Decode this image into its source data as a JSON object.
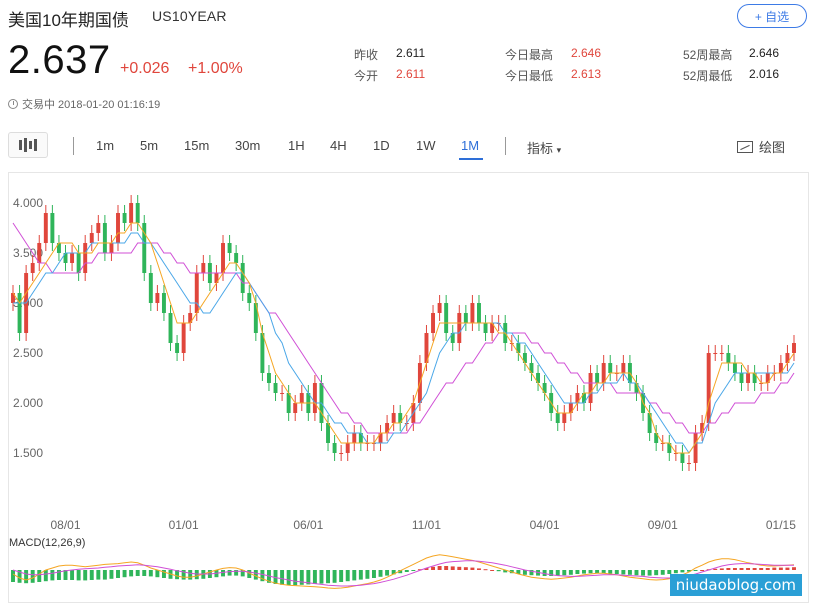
{
  "header": {
    "title": "美国10年期国债",
    "symbol": "US10YEAR",
    "watch_label": "+ 自选"
  },
  "quote": {
    "price": "2.637",
    "change": "+0.026",
    "change_pct": "+1.00%"
  },
  "stats": {
    "prev_close_label": "昨收",
    "prev_close": "2.611",
    "open_label": "今开",
    "open": "2.611",
    "day_high_label": "今日最高",
    "day_high": "2.646",
    "day_low_label": "今日最低",
    "day_low": "2.613",
    "wk52_high_label": "52周最高",
    "wk52_high": "2.646",
    "wk52_low_label": "52周最低",
    "wk52_low": "2.016"
  },
  "status": {
    "text": "交易中 2018-01-20 01:16:19"
  },
  "toolbar": {
    "timeframes": [
      "1m",
      "5m",
      "15m",
      "30m",
      "1H",
      "4H",
      "1D",
      "1W",
      "1M"
    ],
    "active_timeframe": "1M",
    "indicator_label": "指标",
    "draw_label": "绘图"
  },
  "colors": {
    "up": "#e0463c",
    "down": "#2fb55a",
    "ma5": "#f5a623",
    "ma10": "#4aa7e8",
    "ma20": "#d04fd6",
    "accent": "#2e6fd8"
  },
  "chart_data": {
    "type": "candlestick",
    "y_ticks": [
      "4.000",
      "3.500",
      "3.000",
      "2.500",
      "2.000",
      "1.500"
    ],
    "x_ticks": [
      "08/01",
      "01/01",
      "06/01",
      "11/01",
      "04/01",
      "09/01",
      "01/15"
    ],
    "ylim": [
      1.0,
      4.2
    ],
    "closes": [
      3.1,
      2.7,
      3.3,
      3.4,
      3.6,
      3.9,
      3.6,
      3.5,
      3.4,
      3.5,
      3.3,
      3.6,
      3.7,
      3.8,
      3.5,
      3.6,
      3.9,
      3.8,
      4.0,
      3.8,
      3.3,
      3.0,
      3.1,
      2.9,
      2.6,
      2.5,
      2.8,
      2.9,
      3.3,
      3.4,
      3.2,
      3.3,
      3.6,
      3.5,
      3.4,
      3.1,
      3.0,
      2.7,
      2.3,
      2.2,
      2.1,
      2.1,
      1.9,
      2.0,
      2.1,
      1.9,
      2.2,
      1.8,
      1.6,
      1.5,
      1.5,
      1.6,
      1.7,
      1.6,
      1.6,
      1.6,
      1.7,
      1.8,
      1.9,
      1.8,
      1.8,
      2.0,
      2.4,
      2.7,
      2.9,
      3.0,
      2.7,
      2.6,
      2.9,
      2.8,
      3.0,
      2.8,
      2.7,
      2.8,
      2.8,
      2.6,
      2.6,
      2.5,
      2.4,
      2.3,
      2.2,
      2.1,
      1.9,
      1.8,
      1.9,
      2.0,
      2.1,
      2.0,
      2.3,
      2.2,
      2.4,
      2.3,
      2.3,
      2.4,
      2.2,
      2.1,
      1.9,
      1.7,
      1.6,
      1.6,
      1.5,
      1.5,
      1.4,
      1.4,
      1.7,
      1.8,
      2.5,
      2.5,
      2.5,
      2.4,
      2.3,
      2.2,
      2.3,
      2.2,
      2.2,
      2.3,
      2.3,
      2.4,
      2.5,
      2.6
    ],
    "ma5": [
      3.1,
      3.0,
      3.1,
      3.2,
      3.3,
      3.4,
      3.5,
      3.6,
      3.6,
      3.6,
      3.5,
      3.5,
      3.5,
      3.6,
      3.6,
      3.6,
      3.7,
      3.7,
      3.8,
      3.8,
      3.7,
      3.6,
      3.4,
      3.2,
      3.0,
      2.8,
      2.8,
      2.8,
      2.9,
      3.0,
      3.1,
      3.2,
      3.3,
      3.4,
      3.4,
      3.3,
      3.2,
      3.0,
      2.7,
      2.5,
      2.3,
      2.2,
      2.1,
      2.0,
      2.0,
      2.0,
      2.0,
      1.9,
      1.8,
      1.7,
      1.6,
      1.6,
      1.6,
      1.6,
      1.6,
      1.6,
      1.7,
      1.7,
      1.8,
      1.8,
      1.9,
      2.0,
      2.2,
      2.4,
      2.6,
      2.8,
      2.8,
      2.8,
      2.8,
      2.8,
      2.8,
      2.8,
      2.8,
      2.8,
      2.7,
      2.7,
      2.6,
      2.5,
      2.4,
      2.3,
      2.2,
      2.1,
      2.0,
      1.9,
      1.9,
      1.9,
      2.0,
      2.1,
      2.1,
      2.2,
      2.2,
      2.3,
      2.3,
      2.3,
      2.3,
      2.2,
      2.0,
      1.9,
      1.7,
      1.6,
      1.6,
      1.5,
      1.5,
      1.5,
      1.6,
      1.7,
      2.0,
      2.2,
      2.4,
      2.4,
      2.4,
      2.4,
      2.3,
      2.3,
      2.2,
      2.2,
      2.3,
      2.3,
      2.4,
      2.5
    ],
    "ma10": [
      3.0,
      3.0,
      3.0,
      3.1,
      3.2,
      3.3,
      3.3,
      3.4,
      3.5,
      3.5,
      3.5,
      3.5,
      3.6,
      3.6,
      3.6,
      3.6,
      3.6,
      3.6,
      3.7,
      3.7,
      3.6,
      3.6,
      3.5,
      3.4,
      3.3,
      3.2,
      3.1,
      3.0,
      3.0,
      2.9,
      2.9,
      3.0,
      3.1,
      3.2,
      3.3,
      3.3,
      3.2,
      3.1,
      3.0,
      2.9,
      2.7,
      2.6,
      2.4,
      2.3,
      2.2,
      2.1,
      2.0,
      2.0,
      1.9,
      1.8,
      1.8,
      1.7,
      1.7,
      1.7,
      1.6,
      1.6,
      1.6,
      1.6,
      1.7,
      1.7,
      1.8,
      1.9,
      2.0,
      2.1,
      2.3,
      2.5,
      2.6,
      2.7,
      2.7,
      2.8,
      2.8,
      2.8,
      2.8,
      2.8,
      2.8,
      2.7,
      2.7,
      2.6,
      2.6,
      2.5,
      2.4,
      2.3,
      2.2,
      2.1,
      2.0,
      2.0,
      2.0,
      2.0,
      2.1,
      2.1,
      2.2,
      2.2,
      2.2,
      2.3,
      2.2,
      2.2,
      2.1,
      2.0,
      1.9,
      1.8,
      1.7,
      1.6,
      1.6,
      1.5,
      1.6,
      1.6,
      1.8,
      2.0,
      2.1,
      2.2,
      2.3,
      2.3,
      2.3,
      2.3,
      2.3,
      2.3,
      2.3,
      2.3,
      2.3,
      2.4
    ],
    "ma20": [
      3.8,
      3.7,
      3.6,
      3.5,
      3.4,
      3.4,
      3.3,
      3.3,
      3.3,
      3.3,
      3.3,
      3.4,
      3.4,
      3.5,
      3.5,
      3.5,
      3.5,
      3.5,
      3.5,
      3.6,
      3.6,
      3.6,
      3.6,
      3.5,
      3.5,
      3.4,
      3.4,
      3.3,
      3.3,
      3.3,
      3.3,
      3.3,
      3.3,
      3.3,
      3.3,
      3.2,
      3.2,
      3.1,
      3.0,
      2.9,
      2.9,
      2.8,
      2.7,
      2.6,
      2.5,
      2.4,
      2.3,
      2.2,
      2.1,
      2.0,
      1.9,
      1.9,
      1.8,
      1.8,
      1.7,
      1.7,
      1.7,
      1.7,
      1.7,
      1.7,
      1.7,
      1.8,
      1.8,
      1.9,
      2.0,
      2.1,
      2.2,
      2.2,
      2.3,
      2.4,
      2.4,
      2.5,
      2.6,
      2.6,
      2.7,
      2.7,
      2.7,
      2.7,
      2.7,
      2.6,
      2.6,
      2.5,
      2.5,
      2.4,
      2.4,
      2.3,
      2.3,
      2.2,
      2.2,
      2.2,
      2.2,
      2.2,
      2.1,
      2.1,
      2.1,
      2.1,
      2.1,
      2.0,
      2.0,
      1.9,
      1.9,
      1.8,
      1.8,
      1.7,
      1.7,
      1.7,
      1.8,
      1.8,
      1.9,
      1.9,
      2.0,
      2.0,
      2.0,
      2.0,
      2.1,
      2.1,
      2.1,
      2.2,
      2.2,
      2.3
    ],
    "macd_label": "MACD(12,26,9)",
    "macd_hist": [
      -0.3,
      -0.32,
      -0.33,
      -0.32,
      -0.3,
      -0.28,
      -0.26,
      -0.25,
      -0.25,
      -0.25,
      -0.26,
      -0.26,
      -0.25,
      -0.24,
      -0.24,
      -0.22,
      -0.2,
      -0.18,
      -0.16,
      -0.15,
      -0.15,
      -0.16,
      -0.18,
      -0.2,
      -0.22,
      -0.23,
      -0.24,
      -0.24,
      -0.23,
      -0.22,
      -0.2,
      -0.18,
      -0.16,
      -0.14,
      -0.14,
      -0.16,
      -0.2,
      -0.24,
      -0.28,
      -0.32,
      -0.35,
      -0.37,
      -0.38,
      -0.38,
      -0.37,
      -0.36,
      -0.35,
      -0.34,
      -0.33,
      -0.32,
      -0.3,
      -0.28,
      -0.26,
      -0.24,
      -0.22,
      -0.2,
      -0.17,
      -0.14,
      -0.11,
      -0.08,
      -0.05,
      -0.02,
      0.02,
      0.05,
      0.08,
      0.1,
      0.1,
      0.09,
      0.08,
      0.07,
      0.06,
      0.04,
      0.02,
      0.0,
      -0.03,
      -0.06,
      -0.08,
      -0.1,
      -0.12,
      -0.13,
      -0.14,
      -0.15,
      -0.15,
      -0.14,
      -0.13,
      -0.12,
      -0.1,
      -0.09,
      -0.08,
      -0.08,
      -0.08,
      -0.09,
      -0.1,
      -0.11,
      -0.12,
      -0.13,
      -0.14,
      -0.14,
      -0.13,
      -0.12,
      -0.1,
      -0.08,
      -0.06,
      -0.04,
      -0.02,
      0.0,
      0.02,
      0.03,
      0.04,
      0.05,
      0.05,
      0.05,
      0.05,
      0.05,
      0.05,
      0.05,
      0.06,
      0.06,
      0.06,
      0.07
    ],
    "macd_dif": [
      -0.1,
      -0.2,
      -0.25,
      -0.2,
      -0.1,
      0.0,
      0.05,
      0.1,
      0.12,
      0.12,
      0.1,
      0.08,
      0.1,
      0.12,
      0.14,
      0.15,
      0.16,
      0.18,
      0.2,
      0.18,
      0.12,
      0.05,
      0.0,
      -0.05,
      -0.1,
      -0.15,
      -0.18,
      -0.18,
      -0.15,
      -0.1,
      -0.05,
      0.0,
      0.04,
      0.06,
      0.05,
      0.0,
      -0.08,
      -0.15,
      -0.22,
      -0.28,
      -0.33,
      -0.36,
      -0.38,
      -0.39,
      -0.4,
      -0.41,
      -0.42,
      -0.43,
      -0.45,
      -0.46,
      -0.45,
      -0.43,
      -0.4,
      -0.37,
      -0.34,
      -0.3,
      -0.25,
      -0.18,
      -0.1,
      -0.02,
      0.06,
      0.14,
      0.22,
      0.3,
      0.35,
      0.38,
      0.36,
      0.33,
      0.3,
      0.27,
      0.24,
      0.2,
      0.15,
      0.1,
      0.05,
      0.0,
      -0.05,
      -0.1,
      -0.14,
      -0.18,
      -0.2,
      -0.22,
      -0.23,
      -0.22,
      -0.2,
      -0.18,
      -0.15,
      -0.12,
      -0.1,
      -0.08,
      -0.08,
      -0.1,
      -0.12,
      -0.15,
      -0.18,
      -0.2,
      -0.22,
      -0.24,
      -0.25,
      -0.24,
      -0.22,
      -0.18,
      -0.12,
      -0.05,
      0.05,
      0.12,
      0.2,
      0.25,
      0.28,
      0.28,
      0.26,
      0.22,
      0.18,
      0.15,
      0.12,
      0.1,
      0.1,
      0.11,
      0.12,
      0.13
    ],
    "macd_dea": [
      0.0,
      -0.05,
      -0.1,
      -0.12,
      -0.12,
      -0.1,
      -0.08,
      -0.05,
      -0.02,
      0.0,
      0.02,
      0.03,
      0.04,
      0.05,
      0.07,
      0.08,
      0.1,
      0.11,
      0.12,
      0.13,
      0.12,
      0.1,
      0.08,
      0.05,
      0.02,
      -0.02,
      -0.05,
      -0.08,
      -0.1,
      -0.1,
      -0.1,
      -0.08,
      -0.06,
      -0.04,
      -0.03,
      -0.03,
      -0.05,
      -0.08,
      -0.11,
      -0.15,
      -0.19,
      -0.22,
      -0.25,
      -0.28,
      -0.3,
      -0.32,
      -0.34,
      -0.36,
      -0.38,
      -0.39,
      -0.4,
      -0.4,
      -0.39,
      -0.38,
      -0.36,
      -0.34,
      -0.31,
      -0.27,
      -0.23,
      -0.18,
      -0.13,
      -0.07,
      -0.01,
      0.05,
      0.1,
      0.15,
      0.19,
      0.21,
      0.22,
      0.23,
      0.23,
      0.22,
      0.2,
      0.18,
      0.15,
      0.12,
      0.08,
      0.04,
      0.0,
      -0.03,
      -0.06,
      -0.09,
      -0.12,
      -0.14,
      -0.15,
      -0.16,
      -0.16,
      -0.15,
      -0.14,
      -0.13,
      -0.12,
      -0.12,
      -0.12,
      -0.13,
      -0.14,
      -0.15,
      -0.16,
      -0.18,
      -0.19,
      -0.2,
      -0.2,
      -0.19,
      -0.17,
      -0.14,
      -0.1,
      -0.05,
      0.0,
      0.05,
      0.1,
      0.13,
      0.15,
      0.16,
      0.16,
      0.15,
      0.14,
      0.13,
      0.12,
      0.12,
      0.12,
      0.12
    ]
  },
  "watermark": "niudaoblog.com"
}
